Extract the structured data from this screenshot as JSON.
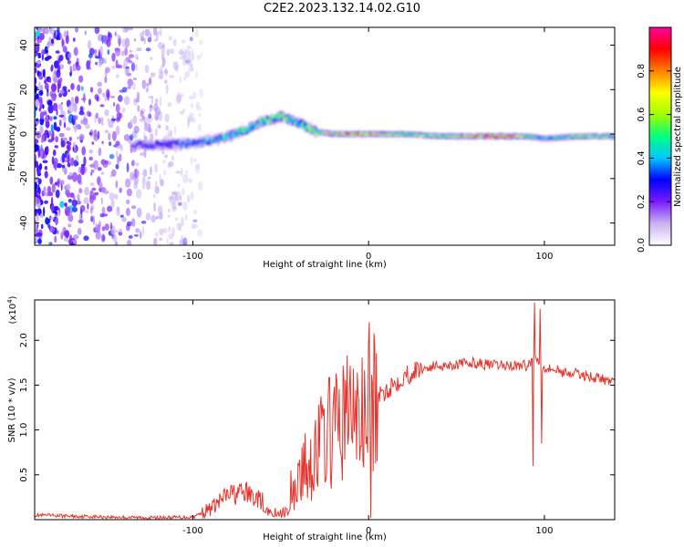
{
  "title": "C2E2.2023.132.14.02.G10",
  "spectrogram": {
    "xlabel": "Height of straight line (km)",
    "ylabel": "Frequency (Hz)",
    "xticks": [
      "-100",
      "0",
      "100"
    ],
    "yticks": [
      "40",
      "20",
      "0",
      "-20",
      "-40"
    ],
    "xlim": [
      -190,
      140
    ],
    "ylim": [
      -50,
      48
    ],
    "colorbar": {
      "label": "Normalized spectral amplitude",
      "ticks": [
        "0.0",
        "0.2",
        "0.4",
        "0.6",
        "0.8"
      ],
      "range": [
        0,
        1
      ],
      "colormap": [
        "#ffffff",
        "#c9b3f0",
        "#7a1bff",
        "#0000ff",
        "#00c8ff",
        "#00ff80",
        "#a0ff00",
        "#ffff00",
        "#ff8000",
        "#ff0000",
        "#ff00a0"
      ]
    },
    "ridge": {
      "x_km": [
        -135,
        -120,
        -100,
        -90,
        -80,
        -70,
        -60,
        -50,
        -40,
        -30,
        -20,
        -10,
        0,
        20,
        40,
        60,
        80,
        90,
        100,
        120,
        140
      ],
      "freq_hz": [
        -5,
        -5,
        -4,
        -3,
        -1,
        2,
        6,
        8,
        5,
        1,
        0,
        0,
        0,
        0,
        -1,
        -1,
        -1,
        -1,
        -2,
        -1,
        -1
      ],
      "peak_amplitude": [
        0.2,
        0.3,
        0.35,
        0.4,
        0.45,
        0.5,
        0.5,
        0.55,
        0.5,
        0.55,
        0.7,
        0.8,
        0.8,
        0.55,
        0.6,
        0.75,
        0.95,
        0.5,
        0.4,
        0.6,
        0.5
      ]
    }
  },
  "snr": {
    "type": "line",
    "xlabel": "Height of straight line (km)",
    "ylabel": "SNR (10 * v/v)",
    "exponent_label": "(x10",
    "exponent_power": "4",
    "exponent_close": ")",
    "xticks": [
      "-100",
      "0",
      "100"
    ],
    "yticks": [
      "2.0",
      "1.5",
      "1.0",
      "0.5"
    ],
    "xlim": [
      -190,
      140
    ],
    "ylim_x1e4": [
      0,
      2.45
    ],
    "series_color": "#e8332a",
    "x_km": [
      -190,
      -150,
      -120,
      -100,
      -90,
      -80,
      -70,
      -60,
      -55,
      -50,
      -45,
      -40,
      -35,
      -30,
      -25,
      -20,
      -15,
      -10,
      -5,
      0,
      10,
      20,
      30,
      40,
      50,
      60,
      70,
      80,
      90,
      95,
      100,
      110,
      120,
      130,
      140
    ],
    "snr_x1e4": [
      0.05,
      0.03,
      0.02,
      0.03,
      0.12,
      0.28,
      0.3,
      0.2,
      0.05,
      0.03,
      0.3,
      0.45,
      0.6,
      0.75,
      0.95,
      1.0,
      1.1,
      1.25,
      1.1,
      1.2,
      1.45,
      1.6,
      1.68,
      1.72,
      1.73,
      1.75,
      1.72,
      1.72,
      1.72,
      1.8,
      1.7,
      1.65,
      1.62,
      1.58,
      1.53
    ]
  }
}
